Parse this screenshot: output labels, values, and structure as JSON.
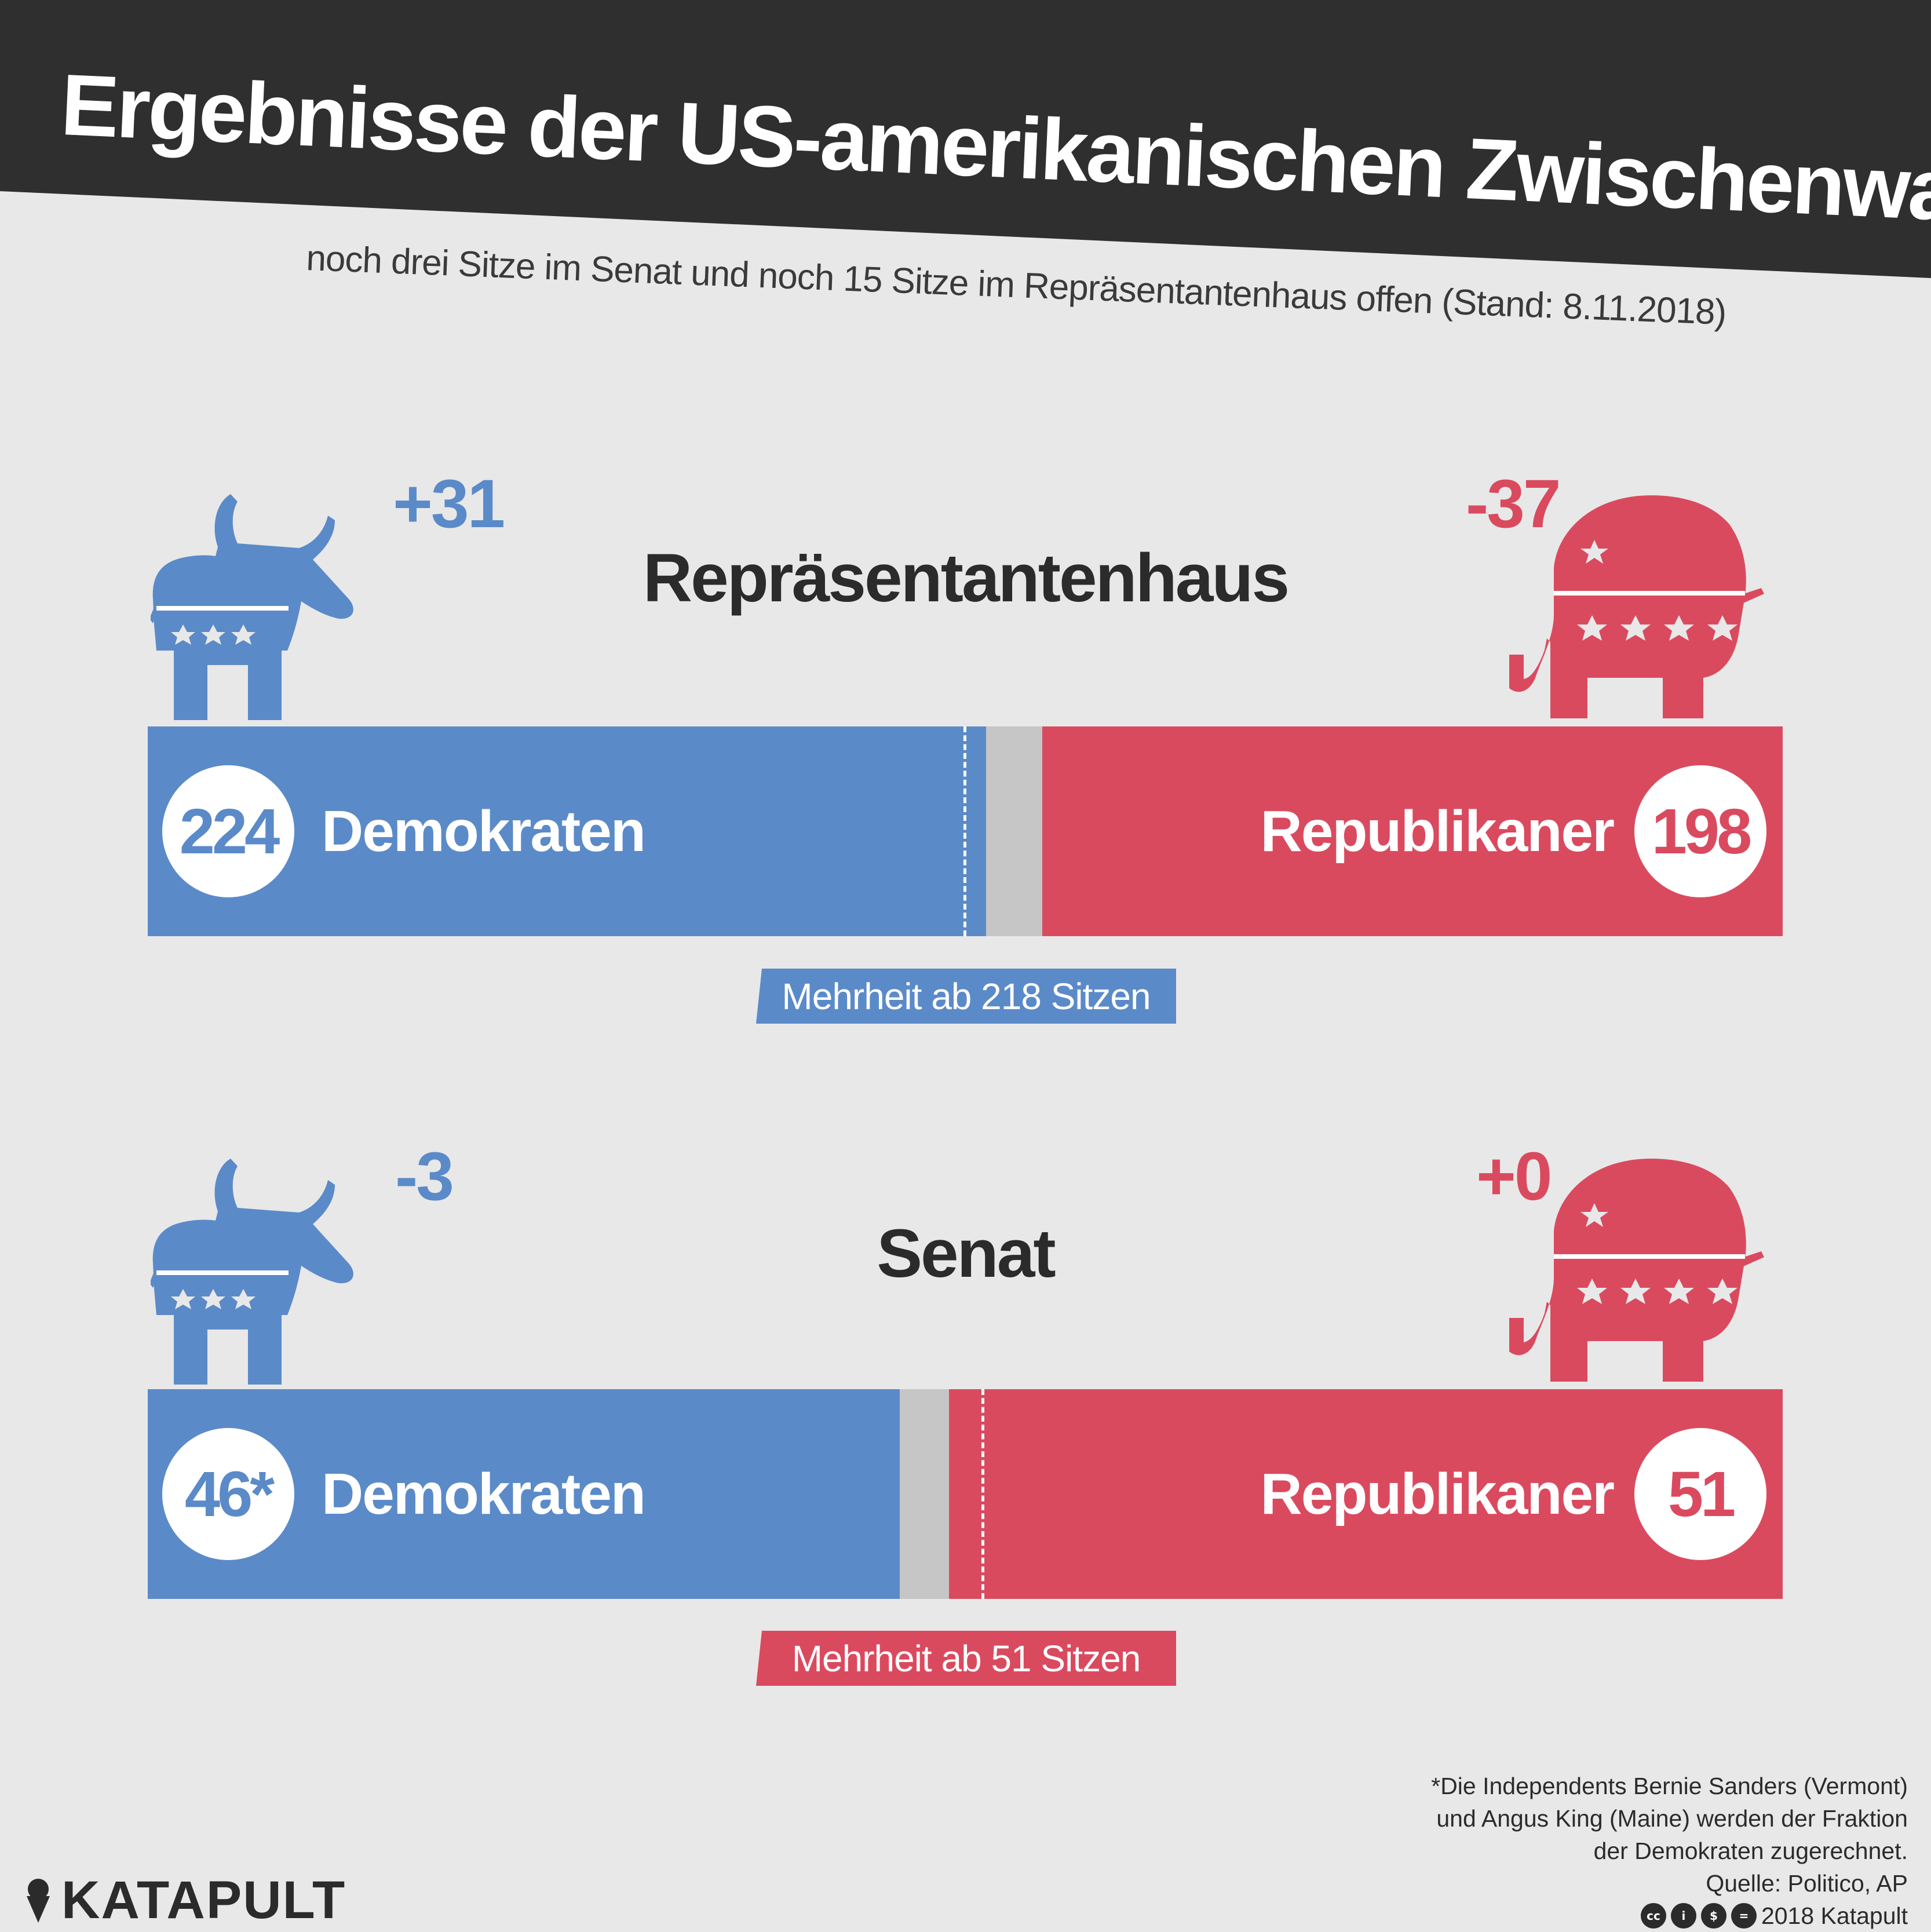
{
  "title": "Ergebnisse der US-amerikanischen Zwischenwahlen",
  "subtitle": "noch drei Sitze im Senat und noch 15 Sitze im Repräsentantenhaus offen (Stand: 8.11.2018)",
  "colors": {
    "democrats": "#5b8ac8",
    "republicans": "#da4a5f",
    "open": "#c6c6c6",
    "background": "#e8e8e8",
    "banner": "#2f2f2f"
  },
  "chambers": [
    {
      "name": "Repräsentantenhaus",
      "dem_change": "+31",
      "rep_change": "-37",
      "dem_seats": "224",
      "rep_seats": "198",
      "dem_label": "Demokraten",
      "rep_label": "Republikaner",
      "majority_label": "Mehrheit ab 218 Sitzen"
    },
    {
      "name": "Senat",
      "dem_change": "-3",
      "rep_change": "+0",
      "dem_seats": "46*",
      "rep_seats": "51",
      "dem_label": "Demokraten",
      "rep_label": "Republikaner",
      "majority_label": "Mehrheit ab 51 Sitzen"
    }
  ],
  "chart_data": [
    {
      "type": "bar",
      "title": "Repräsentantenhaus",
      "orientation": "horizontal-stacked",
      "total": 437,
      "majority": 218,
      "series": [
        {
          "name": "Demokraten",
          "value": 224,
          "change": 31,
          "color": "#5b8ac8"
        },
        {
          "name": "",
          "value": 15,
          "color": "#c6c6c6"
        },
        {
          "name": "Republikaner",
          "value": 198,
          "change": -37,
          "color": "#da4a5f"
        }
      ]
    },
    {
      "type": "bar",
      "title": "Senat",
      "orientation": "horizontal-stacked",
      "total": 100,
      "majority": 51,
      "series": [
        {
          "name": "Demokraten",
          "value": 46,
          "change": -3,
          "color": "#5b8ac8"
        },
        {
          "name": "",
          "value": 3,
          "color": "#c6c6c6"
        },
        {
          "name": "Republikaner",
          "value": 51,
          "change": 0,
          "color": "#da4a5f"
        }
      ]
    }
  ],
  "footnote": {
    "lines": [
      "*Die Independents Bernie Sanders (Vermont)",
      "und Angus King (Maine) werden der Fraktion",
      "der Demokraten zugerechnet."
    ],
    "source": "Quelle: Politico, AP",
    "copyright": "2018 Katapult",
    "license_icons": [
      "cc",
      "by",
      "nc",
      "nd"
    ]
  },
  "logo": {
    "text": "KATAPULT",
    "icon": "ice-cream-cone-icon"
  }
}
